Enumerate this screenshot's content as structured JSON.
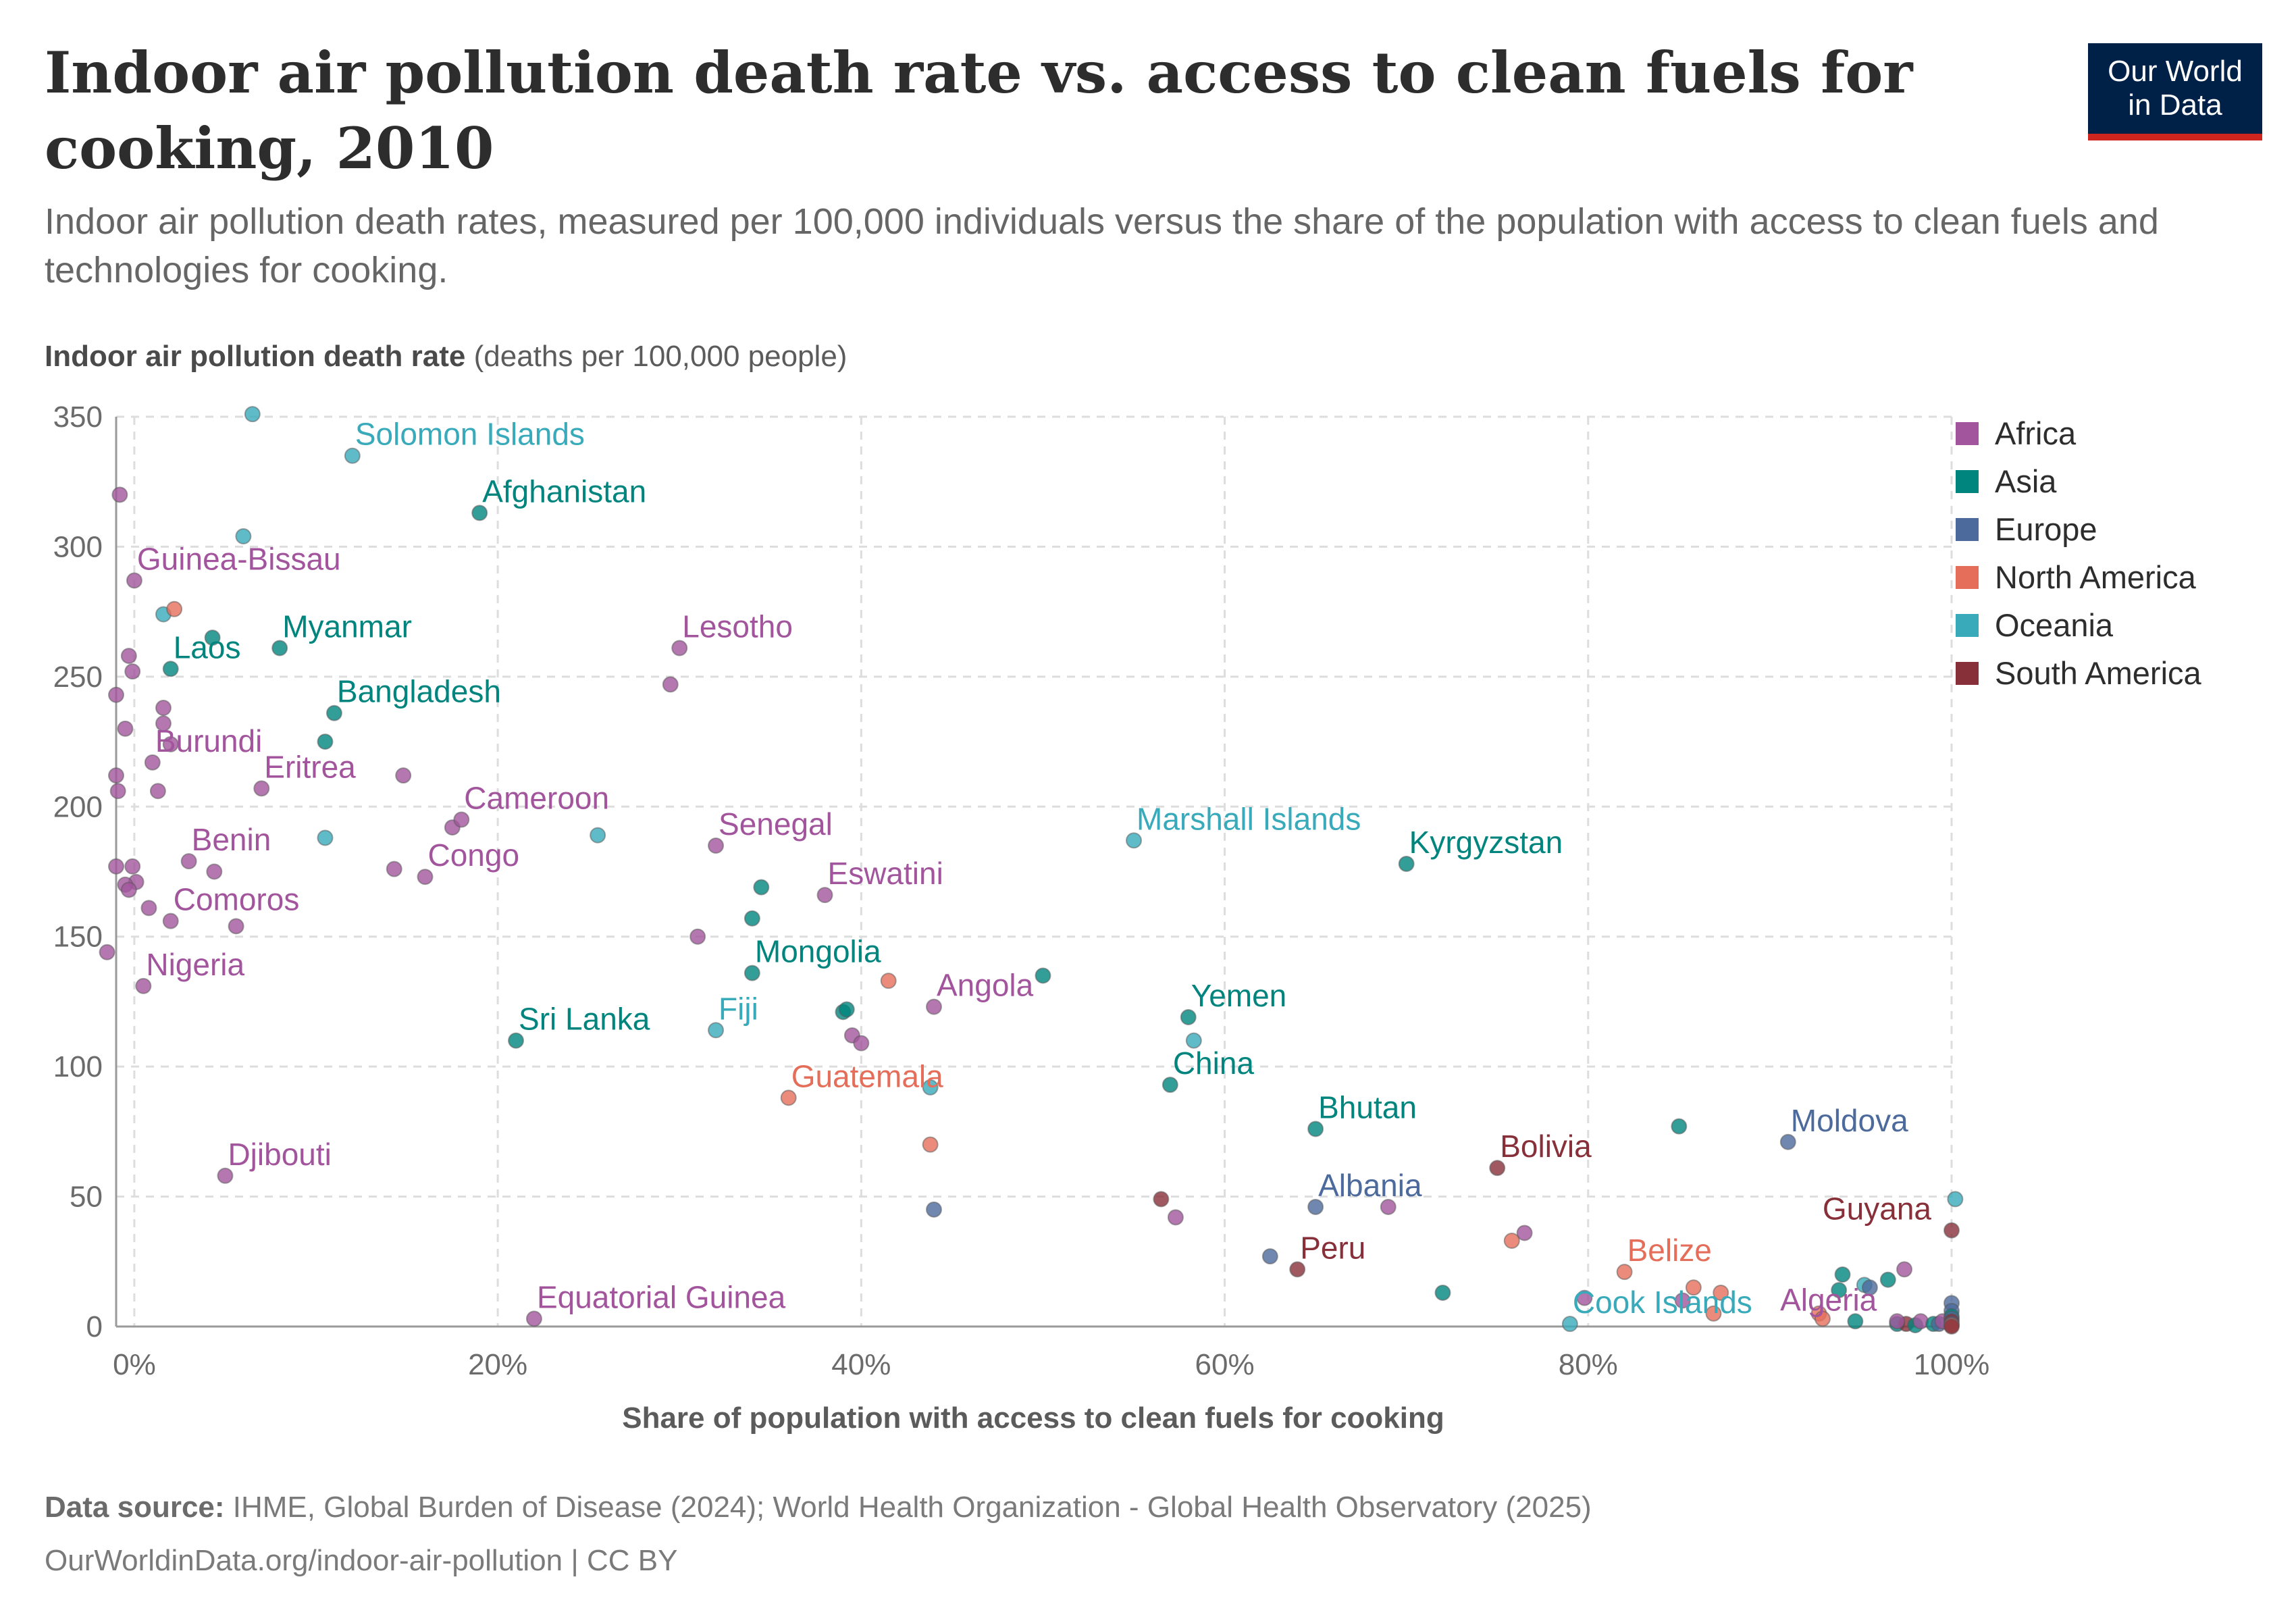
{
  "title": "Indoor air pollution death rate vs. access to clean fuels for cooking, 2010",
  "subtitle": "Indoor air pollution death rates, measured per 100,000 individuals versus the share of the population with access to clean fuels and technologies for cooking.",
  "logo": {
    "line1": "Our World",
    "line2": "in Data"
  },
  "footer": {
    "source_label": "Data source:",
    "source_text": "IHME, Global Burden of Disease (2024); World Health Organization - Global Health Observatory (2025)",
    "url": "OurWorldinData.org/indoor-air-pollution | CC BY"
  },
  "colors": {
    "Africa": "#a2559c",
    "Asia": "#00847e",
    "Europe": "#4c6a9c",
    "North America": "#e56e5a",
    "Oceania": "#38aaba",
    "South America": "#883039"
  },
  "chart_data": {
    "type": "scatter",
    "ylabel_bold": "Indoor air pollution death rate",
    "ylabel_unit": "(deaths per 100,000 people)",
    "xlabel": "Share of population with access to clean fuels for cooking",
    "xlim": [
      -1,
      100
    ],
    "ylim": [
      0,
      350
    ],
    "xticks": [
      0,
      20,
      40,
      60,
      80,
      100
    ],
    "xtick_labels": [
      "0%",
      "20%",
      "40%",
      "60%",
      "80%",
      "100%"
    ],
    "yticks": [
      0,
      50,
      100,
      150,
      200,
      250,
      300,
      350
    ],
    "grid": true,
    "legend_position": "right",
    "legend": [
      "Africa",
      "Asia",
      "Europe",
      "North America",
      "Oceania",
      "South America"
    ],
    "labeled_points": [
      {
        "label": "Solomon Islands",
        "region": "Oceania",
        "x": 12,
        "y": 335
      },
      {
        "label": "Afghanistan",
        "region": "Asia",
        "x": 19,
        "y": 313
      },
      {
        "label": "Guinea-Bissau",
        "region": "Africa",
        "x": 0,
        "y": 287
      },
      {
        "label": "Myanmar",
        "region": "Asia",
        "x": 8,
        "y": 261
      },
      {
        "label": "Laos",
        "region": "Asia",
        "x": 2,
        "y": 253
      },
      {
        "label": "Lesotho",
        "region": "Africa",
        "x": 30,
        "y": 261
      },
      {
        "label": "Bangladesh",
        "region": "Asia",
        "x": 11,
        "y": 236
      },
      {
        "label": "Burundi",
        "region": "Africa",
        "x": 1,
        "y": 217
      },
      {
        "label": "Eritrea",
        "region": "Africa",
        "x": 7,
        "y": 207
      },
      {
        "label": "Cameroon",
        "region": "Africa",
        "x": 18,
        "y": 195
      },
      {
        "label": "Senegal",
        "region": "Africa",
        "x": 32,
        "y": 185
      },
      {
        "label": "Marshall Islands",
        "region": "Oceania",
        "x": 55,
        "y": 187
      },
      {
        "label": "Kyrgyzstan",
        "region": "Asia",
        "x": 70,
        "y": 178
      },
      {
        "label": "Benin",
        "region": "Africa",
        "x": 3,
        "y": 179
      },
      {
        "label": "Congo",
        "region": "Africa",
        "x": 16,
        "y": 173
      },
      {
        "label": "Eswatini",
        "region": "Africa",
        "x": 38,
        "y": 166
      },
      {
        "label": "Comoros",
        "region": "Africa",
        "x": 2,
        "y": 156
      },
      {
        "label": "Mongolia",
        "region": "Asia",
        "x": 34,
        "y": 136
      },
      {
        "label": "Nigeria",
        "region": "Africa",
        "x": 0.5,
        "y": 131
      },
      {
        "label": "Angola",
        "region": "Africa",
        "x": 44,
        "y": 123
      },
      {
        "label": "Yemen",
        "region": "Asia",
        "x": 58,
        "y": 119
      },
      {
        "label": "Sri Lanka",
        "region": "Asia",
        "x": 21,
        "y": 110
      },
      {
        "label": "Fiji",
        "region": "Oceania",
        "x": 32,
        "y": 114
      },
      {
        "label": "China",
        "region": "Asia",
        "x": 57,
        "y": 93
      },
      {
        "label": "Guatemala",
        "region": "North America",
        "x": 36,
        "y": 88
      },
      {
        "label": "Bhutan",
        "region": "Asia",
        "x": 65,
        "y": 76
      },
      {
        "label": "Moldova",
        "region": "Europe",
        "x": 91,
        "y": 71
      },
      {
        "label": "Bolivia",
        "region": "South America",
        "x": 75,
        "y": 61
      },
      {
        "label": "Djibouti",
        "region": "Africa",
        "x": 5,
        "y": 58
      },
      {
        "label": "Albania",
        "region": "Europe",
        "x": 65,
        "y": 46
      },
      {
        "label": "Guyana",
        "region": "South America",
        "x": 100,
        "y": 37
      },
      {
        "label": "Peru",
        "region": "South America",
        "x": 64,
        "y": 22
      },
      {
        "label": "Belize",
        "region": "North America",
        "x": 82,
        "y": 21
      },
      {
        "label": "Equatorial Guinea",
        "region": "Africa",
        "x": 22,
        "y": 3
      },
      {
        "label": "Cook Islands",
        "region": "Oceania",
        "x": 79,
        "y": 1
      },
      {
        "label": "Algeria",
        "region": "Africa",
        "x": 97,
        "y": 2
      }
    ],
    "points": [
      {
        "region": "Africa",
        "x": -0.8,
        "y": 320
      },
      {
        "region": "Oceania",
        "x": 6,
        "y": 304
      },
      {
        "region": "Oceania",
        "x": 6.5,
        "y": 351
      },
      {
        "region": "Oceania",
        "x": 1.6,
        "y": 274
      },
      {
        "region": "North America",
        "x": 2.2,
        "y": 276
      },
      {
        "region": "Asia",
        "x": 4.3,
        "y": 265
      },
      {
        "region": "Africa",
        "x": -0.3,
        "y": 258
      },
      {
        "region": "Africa",
        "x": -0.1,
        "y": 252
      },
      {
        "region": "Africa",
        "x": -1,
        "y": 243
      },
      {
        "region": "Africa",
        "x": 1.6,
        "y": 238
      },
      {
        "region": "Africa",
        "x": 1.6,
        "y": 232
      },
      {
        "region": "Africa",
        "x": -0.5,
        "y": 230
      },
      {
        "region": "Asia",
        "x": 10.5,
        "y": 225
      },
      {
        "region": "Africa",
        "x": 2,
        "y": 224
      },
      {
        "region": "Africa",
        "x": -1,
        "y": 212
      },
      {
        "region": "Africa",
        "x": 14.8,
        "y": 212
      },
      {
        "region": "Africa",
        "x": -0.9,
        "y": 206
      },
      {
        "region": "Africa",
        "x": 1.3,
        "y": 206
      },
      {
        "region": "Africa",
        "x": 29.5,
        "y": 247
      },
      {
        "region": "Oceania",
        "x": 10.5,
        "y": 188
      },
      {
        "region": "Oceania",
        "x": 25.5,
        "y": 189
      },
      {
        "region": "Africa",
        "x": 17.5,
        "y": 192
      },
      {
        "region": "Africa",
        "x": -1,
        "y": 177
      },
      {
        "region": "Africa",
        "x": -0.1,
        "y": 177
      },
      {
        "region": "Africa",
        "x": 4.4,
        "y": 175
      },
      {
        "region": "Africa",
        "x": 14.3,
        "y": 176
      },
      {
        "region": "Africa",
        "x": 0.1,
        "y": 171
      },
      {
        "region": "Africa",
        "x": -0.5,
        "y": 170
      },
      {
        "region": "Africa",
        "x": -0.3,
        "y": 168
      },
      {
        "region": "Africa",
        "x": 0.8,
        "y": 161
      },
      {
        "region": "Africa",
        "x": 5.6,
        "y": 154
      },
      {
        "region": "Asia",
        "x": 34.5,
        "y": 169
      },
      {
        "region": "Asia",
        "x": 34,
        "y": 157
      },
      {
        "region": "Africa",
        "x": 31,
        "y": 150
      },
      {
        "region": "Africa",
        "x": -1.5,
        "y": 144
      },
      {
        "region": "Asia",
        "x": 39,
        "y": 121
      },
      {
        "region": "Asia",
        "x": 39.2,
        "y": 122
      },
      {
        "region": "North America",
        "x": 41.5,
        "y": 133
      },
      {
        "region": "Asia",
        "x": 50,
        "y": 135
      },
      {
        "region": "Africa",
        "x": 39.5,
        "y": 112
      },
      {
        "region": "Africa",
        "x": 40,
        "y": 109
      },
      {
        "region": "Oceania",
        "x": 58.3,
        "y": 110
      },
      {
        "region": "Oceania",
        "x": 43.8,
        "y": 92
      },
      {
        "region": "North America",
        "x": 43.8,
        "y": 70
      },
      {
        "region": "Europe",
        "x": 44,
        "y": 45
      },
      {
        "region": "South America",
        "x": 56.5,
        "y": 49
      },
      {
        "region": "Africa",
        "x": 57.3,
        "y": 42
      },
      {
        "region": "Europe",
        "x": 62.5,
        "y": 27
      },
      {
        "region": "Africa",
        "x": 69,
        "y": 46
      },
      {
        "region": "Asia",
        "x": 72,
        "y": 13
      },
      {
        "region": "Africa",
        "x": 76.5,
        "y": 36
      },
      {
        "region": "North America",
        "x": 75.8,
        "y": 33
      },
      {
        "region": "Asia",
        "x": 85,
        "y": 77
      },
      {
        "region": "Africa",
        "x": 79.8,
        "y": 11
      },
      {
        "region": "North America",
        "x": 85.8,
        "y": 15
      },
      {
        "region": "North America",
        "x": 87.3,
        "y": 13
      },
      {
        "region": "North America",
        "x": 86.9,
        "y": 5
      },
      {
        "region": "Africa",
        "x": 85.2,
        "y": 10
      },
      {
        "region": "Asia",
        "x": 93.8,
        "y": 14
      },
      {
        "region": "Asia",
        "x": 94,
        "y": 20
      },
      {
        "region": "Oceania",
        "x": 95.2,
        "y": 16
      },
      {
        "region": "Europe",
        "x": 95.5,
        "y": 15
      },
      {
        "region": "Asia",
        "x": 96.5,
        "y": 18
      },
      {
        "region": "Africa",
        "x": 97.4,
        "y": 22
      },
      {
        "region": "North America",
        "x": 92.7,
        "y": 5
      },
      {
        "region": "North America",
        "x": 92.9,
        "y": 3
      },
      {
        "region": "Asia",
        "x": 94.7,
        "y": 2
      },
      {
        "region": "Asia",
        "x": 97,
        "y": 1
      },
      {
        "region": "South America",
        "x": 97.5,
        "y": 1
      },
      {
        "region": "Asia",
        "x": 98,
        "y": 0.5
      },
      {
        "region": "Africa",
        "x": 98.3,
        "y": 2
      },
      {
        "region": "Asia",
        "x": 99,
        "y": 1
      },
      {
        "region": "Europe",
        "x": 99.3,
        "y": 1
      },
      {
        "region": "Africa",
        "x": 99.5,
        "y": 2
      },
      {
        "region": "Oceania",
        "x": 100.2,
        "y": 49
      },
      {
        "region": "Europe",
        "x": 100,
        "y": 9
      },
      {
        "region": "Europe",
        "x": 100,
        "y": 6
      },
      {
        "region": "Asia",
        "x": 100,
        "y": 4
      },
      {
        "region": "Europe",
        "x": 100,
        "y": 3
      },
      {
        "region": "South America",
        "x": 100,
        "y": 2
      },
      {
        "region": "Europe",
        "x": 100,
        "y": 1
      },
      {
        "region": "North America",
        "x": 100,
        "y": 0.5
      },
      {
        "region": "South America",
        "x": 100,
        "y": 0
      }
    ]
  }
}
